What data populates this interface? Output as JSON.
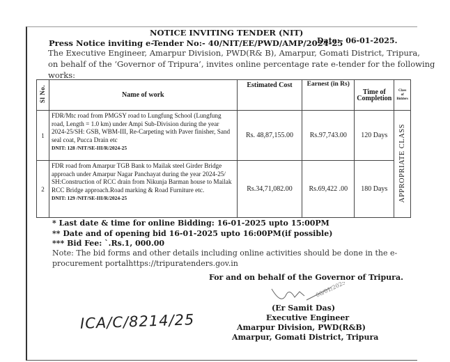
{
  "title": "NOTICE INVITING TENDER (NIT)",
  "press_notice": "Press Notice inviting e-Tender No:- 40/NIT/EE/PWD/AMP/2024-25",
  "date": "Date:- 06-01-2025.",
  "intro": [
    "The Executive Engineer, Amarpur Division, PWD(R& B), Amarpur, Gomati District, Tripura,",
    "on behalf of the ‘Governor of Tripura’, invites online percentage rate e-tender for the following",
    "works:"
  ],
  "table": {
    "headers": {
      "sl": "Sl No.",
      "name": "Name of work",
      "cost": "Estimated Cost",
      "earnest": "Earnest (in Rs)",
      "time": "Time of Completion",
      "class": "Class of Bidders"
    },
    "class_value": "APPROPRIATE CLASS",
    "rows": [
      {
        "sl": "1",
        "name": "FDR/Mtc road from PMGSY road to Lungfung School (Lungfung road, Length = 1.0 km) under Ampi Sub-Division during the year 2024-25/SH: GSB, WBM-III, Re-Carpeting with Paver finisher, Sand seal coat, Pucca Drain etc",
        "dnit": "DNIT:  128 /NIT/SE-III/R/2024-25",
        "cost": "Rs. 48,87,155.00",
        "earnest": "Rs.97,743.00",
        "time": "120 Days"
      },
      {
        "sl": "2",
        "name": "FDR road from Amarpur TGB Bank to Mailak steel Girder Bridge approach under Amarpur Nagar Panchayat  during the year 2024-25/ SH:Construction of RCC drain from Nikunja Barman house to Mailak RCC Bridge approach.Road marking & Road Furniture etc.",
        "dnit": "DNIT:  129 /NIT/SE-III/R/2024-25",
        "cost": "Rs.34,71,082.00",
        "earnest": "Rs.69,422 .00",
        "time": "180 Days"
      }
    ]
  },
  "notes": {
    "last_date": "* Last date & time for online Bidding: 16-01-2025 upto  15:00PM",
    "opening": "** Date and    of opening bid 16-01-2025 upto 16:00PM(if possible)",
    "bid_fee": "*** Bid Fee: `.Rs.1, 000.00",
    "note1": "Note: The bid forms and other details including online activities should be done in the e-",
    "note2": "procurement portalhttps://tripuratenders.gov.in"
  },
  "signature": {
    "behalf": "For and on behalf of the Governor of Tripura.",
    "name": "(Er Samit Das)",
    "designation": "Executive Engineer",
    "division": "Amarpur Division, PWD(R&B)",
    "location": "Amarpur, Gomati District, Tripura",
    "handwritten_date": "06/01/2025"
  },
  "handwritten_ref": "ICA/C/8214/25"
}
